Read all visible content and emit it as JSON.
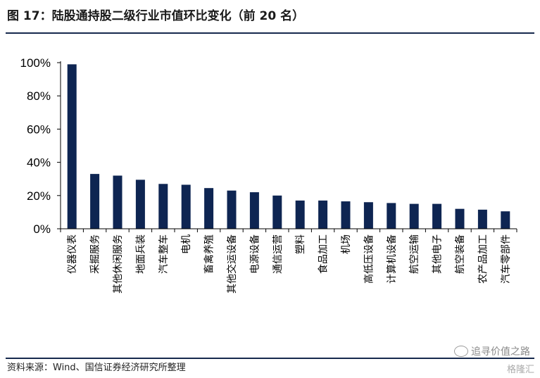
{
  "header": {
    "title": "图 17：陆股通持股二级行业市值环比变化（前 20 名）"
  },
  "footer": {
    "source": "资料来源：Wind、国信证券经济研究所整理",
    "watermark": "追寻价值之路",
    "watermark2": "格隆汇"
  },
  "colors": {
    "bar": "#0e2552",
    "axis": "#000000",
    "rule": "#16294d"
  },
  "chart_data": {
    "type": "bar",
    "categories": [
      "仪器仪表",
      "采掘服务",
      "其他休闲服务",
      "地面兵装",
      "汽车整车",
      "电机",
      "畜禽养殖",
      "其他交运设备",
      "电源设备",
      "通信运营",
      "塑料",
      "食品加工",
      "机场",
      "高低压设备",
      "计算机设备",
      "航空运输",
      "其他电子",
      "航空装备",
      "农产品加工",
      "汽车零部件"
    ],
    "values": [
      99,
      33,
      32,
      29.5,
      27,
      26.5,
      24.5,
      23,
      22,
      20,
      17,
      17,
      16.5,
      16,
      15.5,
      15,
      15,
      12,
      11.5,
      10.5
    ],
    "y_ticks": [
      "0%",
      "20%",
      "40%",
      "60%",
      "80%",
      "100%"
    ],
    "ylim": [
      0,
      100
    ],
    "grid": false,
    "legend": "none"
  }
}
